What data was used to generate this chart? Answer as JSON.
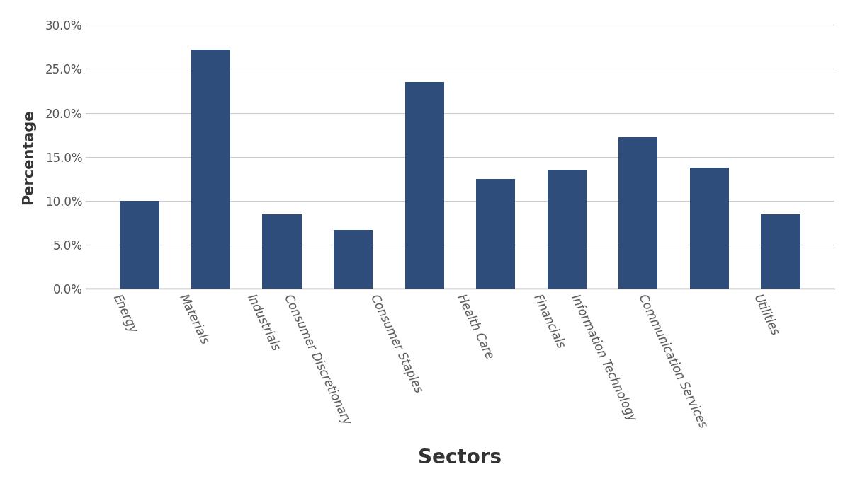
{
  "categories": [
    "Energy",
    "Materials",
    "Industrials",
    "Consumer Discretionary",
    "Consumer Staples",
    "Health Care",
    "Financials",
    "Information Technology",
    "Communication Services",
    "Utilities"
  ],
  "values": [
    0.1,
    0.272,
    0.085,
    0.067,
    0.235,
    0.125,
    0.135,
    0.172,
    0.138,
    0.085
  ],
  "bar_color": "#2e4d7b",
  "xlabel": "Sectors",
  "ylabel": "Percentage",
  "ylim": [
    0,
    0.3
  ],
  "yticks": [
    0.0,
    0.05,
    0.1,
    0.15,
    0.2,
    0.25,
    0.3
  ],
  "background_color": "#ffffff",
  "xlabel_fontsize": 20,
  "ylabel_fontsize": 15,
  "tick_fontsize": 12,
  "xtick_rotation": -65,
  "xlabel_fontweight": "bold",
  "ylabel_fontweight": "bold",
  "bar_width": 0.55,
  "grid_color": "#cccccc",
  "spine_color": "#aaaaaa",
  "tick_color": "#555555"
}
